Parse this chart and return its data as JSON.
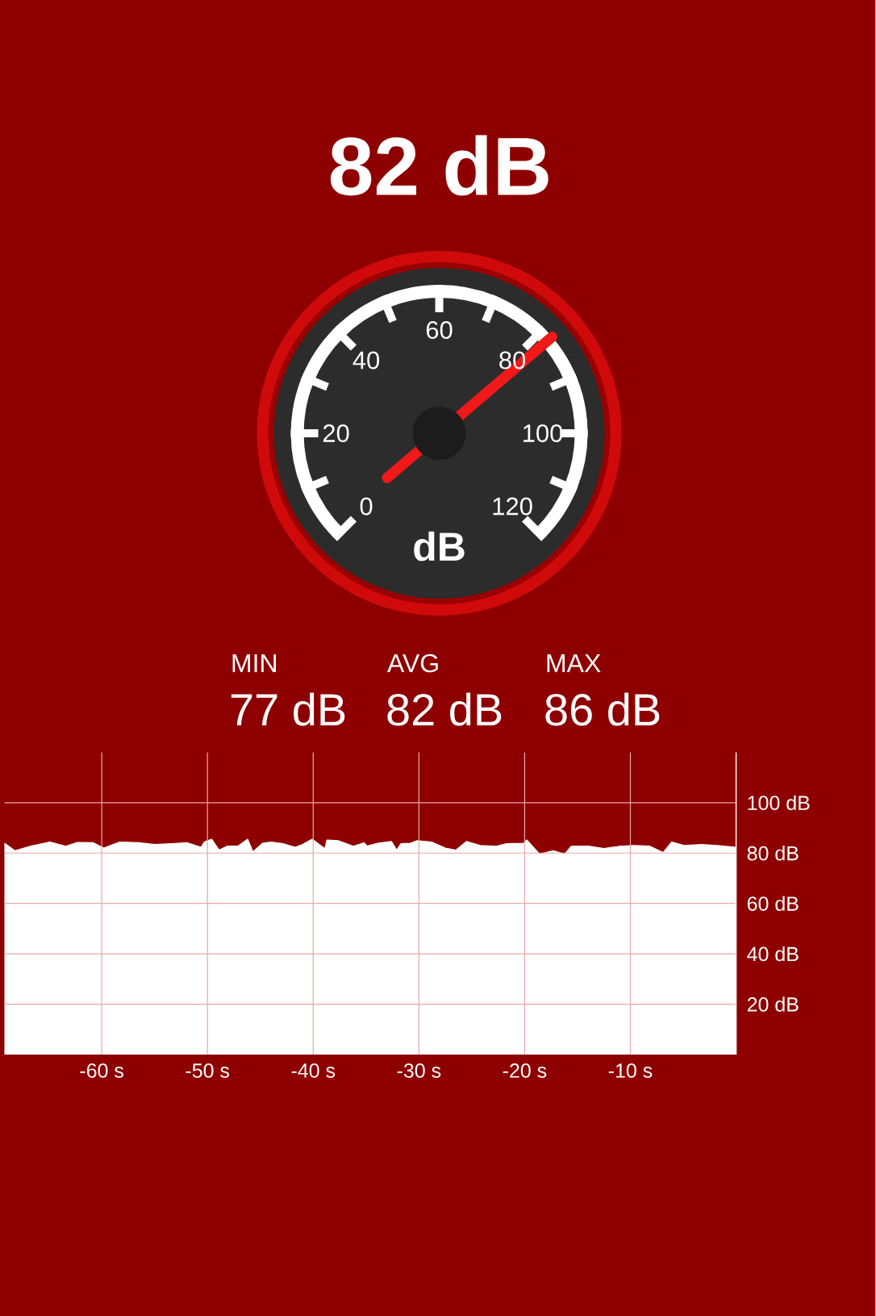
{
  "chart_data": [
    {
      "type": "other",
      "title": "82 dB",
      "xlabel": "dB",
      "annotations": [
        "0",
        "20",
        "40",
        "60",
        "80",
        "100",
        "120",
        "MIN",
        "77 dB",
        "AVG",
        "82 dB",
        "MAX",
        "86 dB"
      ]
    },
    {
      "type": "area",
      "color": "#ffffff",
      "grid": true,
      "xlim": [
        -69.2,
        0
      ],
      "ylim": [
        0,
        120
      ],
      "xticks": [
        {
          "value": -60,
          "label": "-60 s"
        },
        {
          "value": -50,
          "label": "-50 s"
        },
        {
          "value": -40,
          "label": "-40 s"
        },
        {
          "value": -30,
          "label": "-30 s"
        },
        {
          "value": -20,
          "label": "-20 s"
        },
        {
          "value": -10,
          "label": "-10 s"
        }
      ],
      "yticks": [
        {
          "value": 20,
          "label": "20 dB"
        },
        {
          "value": 40,
          "label": "40 dB"
        },
        {
          "value": 60,
          "label": "60 dB"
        },
        {
          "value": 80,
          "label": "80 dB"
        },
        {
          "value": 100,
          "label": "100 dB"
        }
      ],
      "x": [
        -69.2,
        -68.2,
        -66.7,
        -64.9,
        -63.4,
        -62.3,
        -60.8,
        -59.8,
        -58.3,
        -56.5,
        -55.0,
        -53.4,
        -51.9,
        -50.6,
        -50.3,
        -49.6,
        -48.9,
        -48.1,
        -47.1,
        -46.2,
        -45.7,
        -44.8,
        -44.0,
        -42.8,
        -41.7,
        -41.0,
        -40.1,
        -38.9,
        -38.7,
        -37.6,
        -36.2,
        -35.2,
        -34.9,
        -33.9,
        -32.6,
        -32.1,
        -31.7,
        -30.8,
        -30.2,
        -28.8,
        -27.5,
        -26.5,
        -25.5,
        -24.2,
        -22.7,
        -21.7,
        -20.1,
        -19.8,
        -18.6,
        -17.3,
        -16.2,
        -15.6,
        -14.0,
        -12.5,
        -11.0,
        -9.7,
        -8.2,
        -6.9,
        -6.1,
        -4.9,
        -3.3,
        -1.8,
        0
      ],
      "values": [
        83.9,
        80.9,
        82.8,
        84.4,
        82.7,
        84.2,
        84.1,
        82.0,
        84.4,
        84.1,
        83.4,
        83.7,
        84.1,
        82.3,
        84.4,
        85.5,
        81.2,
        82.8,
        82.8,
        85.5,
        80.5,
        83.9,
        84.4,
        83.7,
        82.3,
        83.4,
        85.5,
        81.8,
        85.2,
        84.9,
        82.7,
        84.1,
        82.8,
        83.9,
        84.6,
        81.2,
        83.7,
        83.9,
        84.9,
        84.4,
        82.0,
        81.2,
        84.6,
        83.0,
        82.7,
        83.7,
        83.9,
        85.2,
        79.6,
        80.9,
        79.6,
        82.7,
        82.8,
        81.8,
        82.7,
        83.0,
        82.8,
        80.2,
        84.4,
        83.0,
        83.4,
        83.0,
        82.3
      ]
    }
  ]
}
